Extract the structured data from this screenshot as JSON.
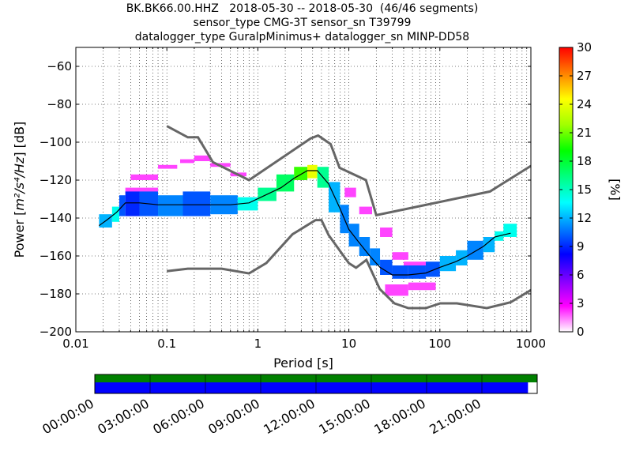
{
  "title_lines": [
    "BK.BK66.00.HHZ   2018-05-30 -- 2018-05-30  (46/46 segments)",
    "sensor_type CMG-3T sensor_sn T39799",
    "datalogger_type GuralpMinimus+ datalogger_sn MINP-DD58"
  ],
  "chart_data": {
    "type": "heatmap",
    "xlabel": "Period [s]",
    "ylabel": "Power [m²/s⁴/Hz] [dB]",
    "ylabel_parts": {
      "prefix": "Power [",
      "unit": "m²/s⁴/Hz",
      "suffix": "] [dB]"
    },
    "x_scale": "log",
    "xlim": [
      0.01,
      1000
    ],
    "ylim": [
      -200,
      -50
    ],
    "x_ticks": [
      0.01,
      0.1,
      1,
      10,
      100,
      1000
    ],
    "x_tick_labels": [
      "0.01",
      "0.1",
      "1",
      "10",
      "100",
      "1000"
    ],
    "y_ticks": [
      -200,
      -180,
      -160,
      -140,
      -120,
      -100,
      -80,
      -60
    ],
    "y_tick_labels": [
      "−200",
      "−180",
      "−160",
      "−140",
      "−120",
      "−100",
      "−80",
      "−60"
    ],
    "grid": true,
    "colorbar": {
      "label": "[%]",
      "range": [
        0,
        30
      ],
      "ticks": [
        0,
        3,
        6,
        9,
        12,
        15,
        18,
        21,
        24,
        27,
        30
      ],
      "colormap": [
        "#ffffff",
        "#ff00ff",
        "#8000ff",
        "#0000ff",
        "#0080ff",
        "#00ffff",
        "#00ff80",
        "#00ff00",
        "#a0ff00",
        "#ffff00",
        "#ff8000",
        "#ff0000"
      ]
    },
    "mode_curve": {
      "name": "mode",
      "color": "#000000",
      "x": [
        0.018,
        0.022,
        0.028,
        0.035,
        0.05,
        0.08,
        0.12,
        0.2,
        0.3,
        0.5,
        0.8,
        1.2,
        1.8,
        2.5,
        3.5,
        4.5,
        6,
        8,
        10,
        13,
        17,
        22,
        30,
        45,
        70,
        100,
        150,
        200,
        300,
        400,
        600
      ],
      "y": [
        -144,
        -141,
        -137,
        -132,
        -132,
        -133,
        -133,
        -133,
        -133,
        -133,
        -132,
        -128,
        -124,
        -119,
        -115,
        -115,
        -122,
        -135,
        -146,
        -153,
        -160,
        -166,
        -170,
        -170,
        -169,
        -166,
        -163,
        -160,
        -155,
        -150,
        -148
      ]
    },
    "noise_models": [
      {
        "name": "NHNM",
        "color": "#666666",
        "x": [
          0.1,
          0.17,
          0.22,
          0.32,
          0.8,
          3.8,
          4.6,
          6.3,
          7.9,
          15.4,
          20,
          354.8,
          1000
        ],
        "y": [
          -91.5,
          -97.4,
          -97.4,
          -110.5,
          -120.0,
          -98.0,
          -96.5,
          -101.0,
          -113.5,
          -120.0,
          -138.5,
          -126.0,
          -112.5
        ]
      },
      {
        "name": "NLNM",
        "color": "#666666",
        "x": [
          0.1,
          0.17,
          0.4,
          0.8,
          1.24,
          2.4,
          4.3,
          5.0,
          6.0,
          10.0,
          12.0,
          15.6,
          21.9,
          31.6,
          45.0,
          70.0,
          101.0,
          154.0,
          328.0,
          600.0,
          1000.0
        ],
        "y": [
          -168.0,
          -166.7,
          -166.7,
          -169.2,
          -163.7,
          -148.6,
          -141.1,
          -141.1,
          -149.0,
          -163.8,
          -166.2,
          -162.1,
          -177.5,
          -185.0,
          -187.5,
          -187.5,
          -185.0,
          -185.0,
          -187.5,
          -184.4,
          -178.0
        ]
      }
    ],
    "probability_bands": [
      {
        "x0": 0.018,
        "x1": 0.025,
        "lo": -145,
        "hi": -138,
        "level": 12
      },
      {
        "x0": 0.025,
        "x1": 0.03,
        "lo": -142,
        "hi": -134,
        "level": 14
      },
      {
        "x0": 0.03,
        "x1": 0.035,
        "lo": -139,
        "hi": -128,
        "level": 10
      },
      {
        "x0": 0.035,
        "x1": 0.05,
        "lo": -139,
        "hi": -126,
        "level": 9
      },
      {
        "x0": 0.05,
        "x1": 0.08,
        "lo": -139,
        "hi": -126,
        "level": 10
      },
      {
        "x0": 0.08,
        "x1": 0.15,
        "lo": -139,
        "hi": -128,
        "level": 11
      },
      {
        "x0": 0.15,
        "x1": 0.3,
        "lo": -139,
        "hi": -126,
        "level": 10
      },
      {
        "x0": 0.3,
        "x1": 0.6,
        "lo": -138,
        "hi": -128,
        "level": 11
      },
      {
        "x0": 0.6,
        "x1": 1.0,
        "lo": -136,
        "hi": -129,
        "level": 14
      },
      {
        "x0": 1.0,
        "x1": 1.6,
        "lo": -131,
        "hi": -124,
        "level": 16
      },
      {
        "x0": 1.6,
        "x1": 2.5,
        "lo": -126,
        "hi": -117,
        "level": 17
      },
      {
        "x0": 2.5,
        "x1": 3.5,
        "lo": -120,
        "hi": -113,
        "level": 20
      },
      {
        "x0": 3.5,
        "x1": 4.5,
        "lo": -119,
        "hi": -112,
        "level": 24
      },
      {
        "x0": 4.5,
        "x1": 6.0,
        "lo": -124,
        "hi": -113,
        "level": 16
      },
      {
        "x0": 6.0,
        "x1": 8.0,
        "lo": -137,
        "hi": -121,
        "level": 12
      },
      {
        "x0": 8.0,
        "x1": 10.0,
        "lo": -148,
        "hi": -133,
        "level": 11
      },
      {
        "x0": 10.0,
        "x1": 13.0,
        "lo": -155,
        "hi": -143,
        "level": 11
      },
      {
        "x0": 13.0,
        "x1": 17.0,
        "lo": -160,
        "hi": -150,
        "level": 11
      },
      {
        "x0": 17.0,
        "x1": 22.0,
        "lo": -165,
        "hi": -156,
        "level": 11
      },
      {
        "x0": 22.0,
        "x1": 30.0,
        "lo": -170,
        "hi": -162,
        "level": 10
      },
      {
        "x0": 30.0,
        "x1": 45.0,
        "lo": -172,
        "hi": -165,
        "level": 10
      },
      {
        "x0": 45.0,
        "x1": 70.0,
        "lo": -172,
        "hi": -165,
        "level": 10
      },
      {
        "x0": 70.0,
        "x1": 100.0,
        "lo": -171,
        "hi": -163,
        "level": 10
      },
      {
        "x0": 100.0,
        "x1": 150.0,
        "lo": -168,
        "hi": -160,
        "level": 12
      },
      {
        "x0": 150.0,
        "x1": 200.0,
        "lo": -165,
        "hi": -157,
        "level": 12
      },
      {
        "x0": 200.0,
        "x1": 300.0,
        "lo": -162,
        "hi": -152,
        "level": 11
      },
      {
        "x0": 300.0,
        "x1": 400.0,
        "lo": -158,
        "hi": -150,
        "level": 12
      },
      {
        "x0": 400.0,
        "x1": 500.0,
        "lo": -152,
        "hi": -147,
        "level": 14
      },
      {
        "x0": 500.0,
        "x1": 700.0,
        "lo": -150,
        "hi": -143,
        "level": 14
      }
    ],
    "outlier_cells": [
      {
        "x0": 0.04,
        "x1": 0.08,
        "lo": -120,
        "hi": -117,
        "level": 2
      },
      {
        "x0": 0.08,
        "x1": 0.13,
        "lo": -114,
        "hi": -112,
        "level": 2
      },
      {
        "x0": 0.14,
        "x1": 0.2,
        "lo": -111,
        "hi": -109,
        "level": 2
      },
      {
        "x0": 0.2,
        "x1": 0.3,
        "lo": -110,
        "hi": -107,
        "level": 2
      },
      {
        "x0": 0.3,
        "x1": 0.5,
        "lo": -113,
        "hi": -111,
        "level": 2
      },
      {
        "x0": 0.5,
        "x1": 0.75,
        "lo": -118,
        "hi": -116,
        "level": 2
      },
      {
        "x0": 0.035,
        "x1": 0.08,
        "lo": -127,
        "hi": -124,
        "level": 2
      },
      {
        "x0": 9.0,
        "x1": 12.0,
        "lo": -129,
        "hi": -124,
        "level": 2
      },
      {
        "x0": 13.0,
        "x1": 18.0,
        "lo": -138,
        "hi": -134,
        "level": 2
      },
      {
        "x0": 22.0,
        "x1": 30.0,
        "lo": -150,
        "hi": -145,
        "level": 2
      },
      {
        "x0": 30.0,
        "x1": 45.0,
        "lo": -162,
        "hi": -158,
        "level": 2
      },
      {
        "x0": 40.0,
        "x1": 70.0,
        "lo": -166,
        "hi": -163,
        "level": 2
      },
      {
        "x0": 25.0,
        "x1": 45.0,
        "lo": -181,
        "hi": -175,
        "level": 2
      },
      {
        "x0": 45.0,
        "x1": 90.0,
        "lo": -178,
        "hi": -174,
        "level": 2
      }
    ],
    "timeline": {
      "tick_labels": [
        "00:00:00",
        "03:00:00",
        "06:00:00",
        "09:00:00",
        "12:00:00",
        "15:00:00",
        "18:00:00",
        "21:00:00"
      ],
      "range_hours": [
        0,
        24
      ],
      "data_coverage_hours": [
        0,
        24
      ],
      "used_coverage_hours": [
        0,
        23.5
      ],
      "colors": {
        "data": "#008000",
        "used": "#0000ff"
      }
    }
  }
}
